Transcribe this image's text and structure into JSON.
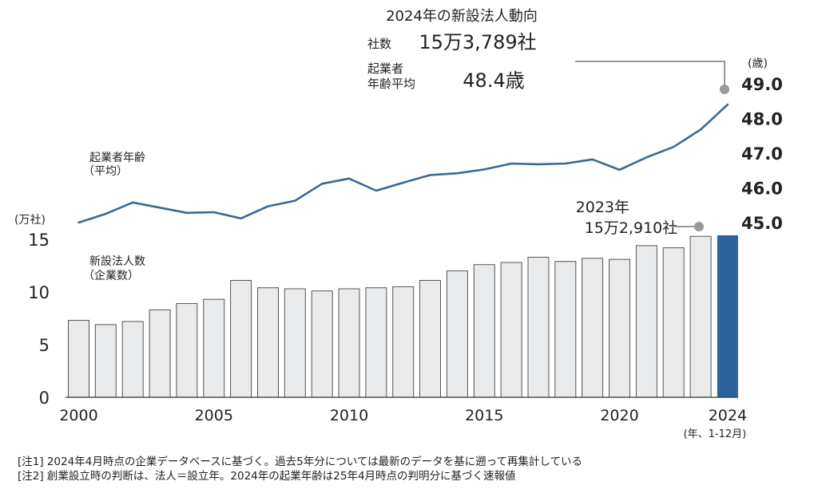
{
  "chart_data": {
    "type": "bar+line",
    "title": "2024年の新設法人動向",
    "categories": [
      "2000",
      "2001",
      "2002",
      "2003",
      "2004",
      "2005",
      "2006",
      "2007",
      "2008",
      "2009",
      "2010",
      "2011",
      "2012",
      "2013",
      "2014",
      "2015",
      "2016",
      "2017",
      "2018",
      "2019",
      "2020",
      "2021",
      "2022",
      "2023",
      "2024"
    ],
    "x_ticks": [
      "2000",
      "2005",
      "2010",
      "2015",
      "2020",
      "2024"
    ],
    "x_unit": "(年、1-12月)",
    "bar_series": {
      "name": "新設法人数（企業数）",
      "label_lines": [
        "新設法人数",
        "（企業数）"
      ],
      "unit": "(万社)",
      "values": [
        7.3,
        6.9,
        7.2,
        8.3,
        8.9,
        9.3,
        11.1,
        10.4,
        10.3,
        10.1,
        10.3,
        10.4,
        10.5,
        11.1,
        12.0,
        12.6,
        12.8,
        13.3,
        12.9,
        13.2,
        13.1,
        14.4,
        14.2,
        15.291,
        15.3789
      ],
      "highlight_index": 24,
      "ylim": [
        0,
        15.8
      ],
      "y_ticks": [
        "0",
        "5",
        "10",
        "15"
      ],
      "bar_color": "#e8eaec",
      "bar_edge_color": "#555555",
      "highlight_color": "#2b629b"
    },
    "line_series": {
      "name": "起業者年齢（平均）",
      "label_lines": [
        "起業者年齢",
        "（平均）"
      ],
      "unit": "(歳)",
      "values": [
        45.0,
        45.25,
        45.58,
        45.43,
        45.28,
        45.3,
        45.12,
        45.47,
        45.63,
        46.12,
        46.27,
        45.92,
        46.15,
        46.37,
        46.42,
        46.53,
        46.7,
        46.68,
        46.7,
        46.82,
        46.52,
        46.88,
        47.18,
        47.68,
        48.4
      ],
      "ylim": [
        44.55,
        49.4
      ],
      "y_ticks": [
        "45.0",
        "46.0",
        "47.0",
        "48.0",
        "49.0"
      ],
      "line_color": "#3a6896"
    },
    "callout_2024": {
      "title": "2024年の新設法人動向",
      "count_label": "社数",
      "count_value": "15万3,789社",
      "age_label_lines": [
        "起業者",
        "年齢平均"
      ],
      "age_value": "48.4歳"
    },
    "callout_2023": {
      "year": "2023年",
      "value": "15万2,910社"
    }
  },
  "notes": [
    "[注1]  2024年4月時点の企業データベースに基づく。過去5年分については最新のデータを基に遡って再集計している",
    "[注2]  創業設立時の判断は、法人＝設立年。2024年の起業年齢は25年4月時点の判明分に基づく速報値"
  ]
}
